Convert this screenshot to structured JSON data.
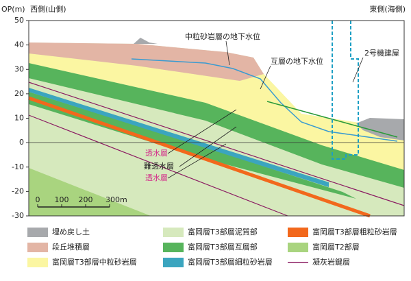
{
  "header": {
    "west": "西側(山側)",
    "east": "東側(海側)"
  },
  "yaxis": {
    "label": "OP(m)",
    "lim": [
      -30,
      50
    ],
    "ticks": [
      50,
      40,
      30,
      20,
      10,
      0,
      -10,
      -20,
      -30
    ]
  },
  "annotations": {
    "middle_sand_water": "中粒砂岩層の地下水位",
    "alternation_water": "互層の地下水位",
    "building": "2号機建屋",
    "permeable_upper": "透水層",
    "impermeable": "難透水層",
    "permeable_lower": "透水層"
  },
  "scale_bar": {
    "labels": [
      "0",
      "100",
      "200",
      "300m"
    ]
  },
  "legend": [
    {
      "label": "埋め戻し土",
      "color": "#a7a9ac"
    },
    {
      "label": "富岡層T3部層泥質部",
      "color": "#d6e9bd"
    },
    {
      "label": "富岡層T3部層粗粒砂岩層",
      "color": "#f2681c"
    },
    {
      "label": "段丘堆積層",
      "color": "#e3b5a5"
    },
    {
      "label": "富岡層T3部層互層部",
      "color": "#57b45c"
    },
    {
      "label": "富岡層T2部層",
      "color": "#a9d47f"
    },
    {
      "label": "富岡層T3部層中粒砂岩層",
      "color": "#fbf6a2"
    },
    {
      "label": "富岡層T3部層細粒砂岩層",
      "color": "#3ba5bf"
    },
    {
      "label": "凝灰岩鍵層",
      "color": "#8b1c62"
    }
  ]
}
